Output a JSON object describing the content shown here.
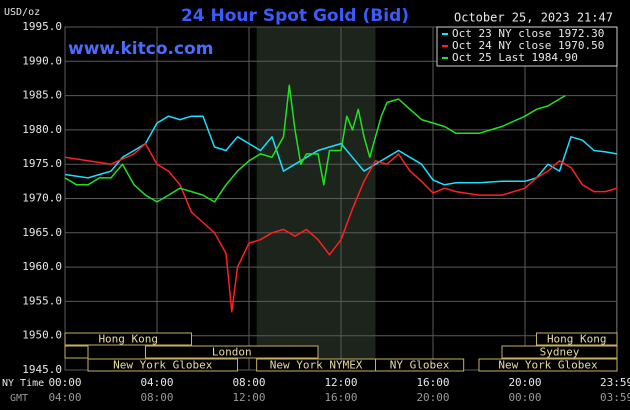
{
  "chart_data": {
    "type": "line",
    "title": "24 Hour Spot Gold (Bid)",
    "site": "www.kitco.com",
    "timestamp": "October 25, 2023 21:47",
    "y_label": "USD/oz",
    "x_label": "NY Time",
    "x2_label": "GMT",
    "xlim": [
      0,
      24
    ],
    "xticks": [
      {
        "value": 0,
        "label": "00:00"
      },
      {
        "value": 4,
        "label": "04:00"
      },
      {
        "value": 8,
        "label": "08:00"
      },
      {
        "value": 12,
        "label": "12:00"
      },
      {
        "value": 16,
        "label": "16:00"
      },
      {
        "value": 20,
        "label": "20:00"
      },
      {
        "value": 23.983,
        "label": "23:59"
      }
    ],
    "gmt_labels": [
      "04:00",
      "08:00",
      "12:00",
      "16:00",
      "20:00",
      "00:00",
      "03:59"
    ],
    "ylim": [
      1945,
      1995
    ],
    "yticks": [
      {
        "value": 1945,
        "label": "1945.0"
      },
      {
        "value": 1950,
        "label": "1950.0"
      },
      {
        "value": 1955,
        "label": "1955.0"
      },
      {
        "value": 1960,
        "label": "1960.0"
      },
      {
        "value": 1965,
        "label": "1965.0"
      },
      {
        "value": 1970,
        "label": "1970.0"
      },
      {
        "value": 1975,
        "label": "1975.0"
      },
      {
        "value": 1980,
        "label": "1980.0"
      },
      {
        "value": 1985,
        "label": "1985.0"
      },
      {
        "value": 1990,
        "label": "1990.0"
      },
      {
        "value": 1995,
        "label": "1995.0"
      }
    ],
    "grid": true,
    "shaded_range": [
      8.333,
      13.5
    ],
    "sessions": [
      {
        "label": "Hong Kong",
        "row": 0,
        "start": 0,
        "end": 5.5
      },
      {
        "label": "Hong Kong",
        "row": 0,
        "start": 20.5,
        "end": 24
      },
      {
        "label": null,
        "row": 1,
        "start": 0,
        "end": 1
      },
      {
        "label": "London",
        "row": 1,
        "start": 3.5,
        "end": 11
      },
      {
        "label": "Sydney",
        "row": 1,
        "start": 19,
        "end": 24
      },
      {
        "label": "New York Globex",
        "row": 2,
        "start": 1,
        "end": 7.5
      },
      {
        "label": "New York NYMEX",
        "row": 2,
        "start": 8.333,
        "end": 13.5
      },
      {
        "label": "NY Globex",
        "row": 2,
        "start": 13.5,
        "end": 17.333
      },
      {
        "label": "New York Globex",
        "row": 2,
        "start": 18,
        "end": 24
      }
    ],
    "series": [
      {
        "name": "Oct 23 NY close 1972.30",
        "color": "#18e0ff",
        "x": [
          0,
          1,
          2,
          2.5,
          3,
          3.5,
          4,
          4.5,
          5,
          5.5,
          6,
          6.5,
          7,
          7.5,
          8,
          8.5,
          9,
          9.5,
          10,
          10.5,
          11,
          11.5,
          12,
          12.5,
          13,
          13.5,
          14,
          14.5,
          15,
          15.5,
          16,
          16.5,
          17,
          18,
          19,
          20,
          20.5,
          21,
          21.5,
          22,
          22.5,
          23,
          23.5,
          24
        ],
        "values": [
          1973.5,
          1973,
          1974,
          1976,
          1977,
          1978,
          1981,
          1982,
          1981.5,
          1982,
          1982,
          1977.5,
          1977,
          1979,
          1978,
          1977,
          1979,
          1974,
          1975,
          1976,
          1977,
          1977.5,
          1978,
          1976,
          1974,
          1975,
          1976,
          1977,
          1976,
          1975,
          1972.7,
          1972,
          1972.3,
          1972.3,
          1972.5,
          1972.5,
          1973,
          1975,
          1974,
          1979,
          1978.5,
          1977,
          1976.8,
          1976.5
        ]
      },
      {
        "name": "Oct 24 NY close 1970.50",
        "color": "#ff2020",
        "x": [
          0,
          1,
          2,
          3,
          3.5,
          4,
          4.5,
          5,
          5.5,
          6,
          6.5,
          7,
          7.25,
          7.5,
          8,
          8.5,
          9,
          9.5,
          10,
          10.5,
          11,
          11.5,
          12,
          12.5,
          13,
          13.5,
          14,
          14.5,
          15,
          15.5,
          16,
          16.5,
          17,
          18,
          19,
          20,
          20.5,
          21,
          21.5,
          22,
          22.5,
          23,
          23.5,
          24
        ],
        "values": [
          1976,
          1975.5,
          1975,
          1976.5,
          1978,
          1975,
          1974,
          1972,
          1968,
          1966.5,
          1965,
          1962,
          1953.5,
          1960,
          1963.5,
          1964,
          1965,
          1965.5,
          1964.5,
          1965.5,
          1964,
          1961.8,
          1964,
          1968.5,
          1972.5,
          1975.5,
          1975,
          1976.5,
          1974,
          1972.5,
          1970.8,
          1971.5,
          1971,
          1970.5,
          1970.5,
          1971.5,
          1973,
          1974,
          1975.5,
          1974.5,
          1972,
          1971,
          1971,
          1971.5
        ]
      },
      {
        "name": "Oct 25 Last 1984.90",
        "color": "#22e022",
        "x": [
          0,
          0.5,
          1,
          1.5,
          2,
          2.5,
          3,
          3.5,
          4,
          4.5,
          5,
          5.5,
          6,
          6.5,
          7,
          7.5,
          8,
          8.5,
          9,
          9.5,
          9.75,
          10,
          10.25,
          10.5,
          11,
          11.25,
          11.5,
          12,
          12.25,
          12.5,
          12.75,
          13,
          13.25,
          13.5,
          13.75,
          14,
          14.5,
          15,
          15.5,
          16,
          16.5,
          17,
          18,
          19,
          20,
          20.5,
          21,
          21.5,
          21.75
        ],
        "values": [
          1973,
          1972,
          1972,
          1973,
          1973,
          1975,
          1972,
          1970.5,
          1969.5,
          1970.5,
          1971.5,
          1971,
          1970.5,
          1969.5,
          1972,
          1974,
          1975.5,
          1976.5,
          1976,
          1979,
          1986.5,
          1980,
          1975,
          1976.5,
          1976.5,
          1972,
          1977,
          1977,
          1982,
          1980,
          1983,
          1979,
          1976,
          1979,
          1982,
          1984,
          1984.5,
          1983,
          1981.5,
          1981,
          1980.5,
          1979.5,
          1979.5,
          1980.5,
          1982,
          1983,
          1983.5,
          1984.5,
          1985
        ]
      }
    ]
  }
}
